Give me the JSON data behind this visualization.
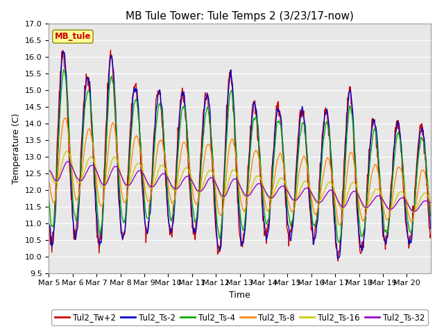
{
  "title": "MB Tule Tower: Tule Temps 2 (3/23/17-now)",
  "xlabel": "Time",
  "ylabel": "Temperature (C)",
  "ylim": [
    9.5,
    17.0
  ],
  "yticks": [
    9.5,
    10.0,
    10.5,
    11.0,
    11.5,
    12.0,
    12.5,
    13.0,
    13.5,
    14.0,
    14.5,
    15.0,
    15.5,
    16.0,
    16.5,
    17.0
  ],
  "xtick_labels": [
    "Mar 5",
    "Mar 6",
    "Mar 7",
    "Mar 8",
    "Mar 9",
    "Mar 10",
    "Mar 11",
    "Mar 12",
    "Mar 13",
    "Mar 14",
    "Mar 15",
    "Mar 16",
    "Mar 17",
    "Mar 18",
    "Mar 19",
    "Mar 20"
  ],
  "series_colors": [
    "#cc0000",
    "#0000cc",
    "#00aa00",
    "#ff8800",
    "#cccc00",
    "#9900cc"
  ],
  "series_names": [
    "Tul2_Tw+2",
    "Tul2_Ts-2",
    "Tul2_Ts-4",
    "Tul2_Ts-8",
    "Tul2_Ts-16",
    "Tul2_Ts-32"
  ],
  "annotation_text": "MB_tule",
  "background_color": "#ffffff",
  "plot_bg_color": "#e8e8e8",
  "grid_color": "#ffffff",
  "title_fontsize": 11,
  "label_fontsize": 9,
  "tick_fontsize": 8,
  "legend_fontsize": 8.5
}
